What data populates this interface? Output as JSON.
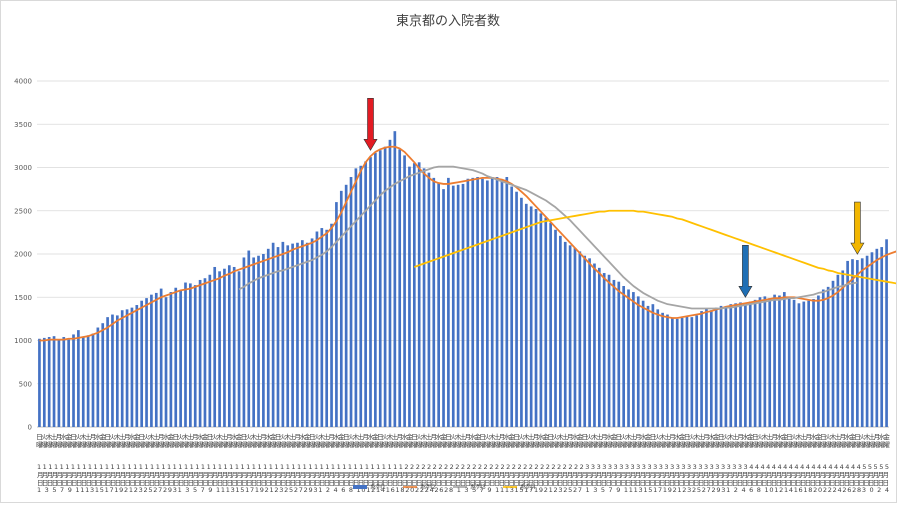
{
  "chart_data": {
    "type": "bar",
    "title": "東京都の入院者数",
    "ylim": [
      0,
      4000
    ],
    "yticks": [
      0,
      500,
      1000,
      1500,
      2000,
      2500,
      3000,
      3500,
      4000
    ],
    "grid": true,
    "legend_placement": "bottom",
    "series": [
      {
        "name": "系列1",
        "type": "bar",
        "color": "#4472c4",
        "values": [
          1020,
          1030,
          1040,
          1050,
          1000,
          1040,
          1010,
          1070,
          1120,
          1040,
          1060,
          1080,
          1150,
          1200,
          1270,
          1300,
          1290,
          1350,
          1360,
          1380,
          1410,
          1460,
          1490,
          1530,
          1550,
          1600,
          1500,
          1560,
          1610,
          1580,
          1670,
          1660,
          1640,
          1700,
          1720,
          1760,
          1850,
          1800,
          1830,
          1870,
          1850,
          1800,
          1960,
          2040,
          1960,
          1980,
          2000,
          2060,
          2130,
          2080,
          2140,
          2100,
          2120,
          2130,
          2160,
          2130,
          2180,
          2260,
          2300,
          2280,
          2350,
          2600,
          2730,
          2800,
          2890,
          2990,
          3020,
          3070,
          3120,
          3170,
          3200,
          3240,
          3320,
          3420,
          3210,
          3140,
          3010,
          3050,
          3060,
          2990,
          2940,
          2880,
          2820,
          2750,
          2880,
          2790,
          2800,
          2810,
          2870,
          2880,
          2890,
          2870,
          2850,
          2890,
          2890,
          2850,
          2890,
          2780,
          2720,
          2650,
          2580,
          2550,
          2520,
          2470,
          2420,
          2360,
          2280,
          2210,
          2140,
          2100,
          2070,
          2030,
          1980,
          1950,
          1890,
          1840,
          1780,
          1760,
          1700,
          1680,
          1630,
          1590,
          1560,
          1510,
          1460,
          1400,
          1420,
          1360,
          1320,
          1300,
          1260,
          1250,
          1260,
          1280,
          1270,
          1290,
          1340,
          1370,
          1350,
          1380,
          1400,
          1390,
          1420,
          1430,
          1440,
          1410,
          1450,
          1470,
          1500,
          1510,
          1490,
          1530,
          1520,
          1560,
          1500,
          1470,
          1430,
          1450,
          1460,
          1480,
          1520,
          1590,
          1620,
          1690,
          1760,
          1810,
          1920,
          1940,
          1930,
          1950,
          1980,
          2020,
          2060,
          2080,
          2170
        ]
      },
      {
        "name": "系列2",
        "type": "line",
        "color": "#ed7d31",
        "values": [
          1000,
          1000,
          1010,
          1010,
          1010,
          1010,
          1020,
          1020,
          1030,
          1040,
          1050,
          1070,
          1090,
          1120,
          1150,
          1190,
          1230,
          1260,
          1290,
          1320,
          1350,
          1380,
          1410,
          1440,
          1470,
          1500,
          1520,
          1540,
          1560,
          1580,
          1590,
          1600,
          1620,
          1640,
          1660,
          1680,
          1700,
          1720,
          1750,
          1770,
          1800,
          1820,
          1840,
          1860,
          1880,
          1900,
          1920,
          1940,
          1960,
          1980,
          2000,
          2020,
          2050,
          2070,
          2090,
          2110,
          2130,
          2160,
          2200,
          2240,
          2300,
          2380,
          2480,
          2600,
          2720,
          2840,
          2960,
          3060,
          3130,
          3180,
          3210,
          3230,
          3240,
          3240,
          3220,
          3180,
          3120,
          3060,
          2990,
          2930,
          2880,
          2840,
          2820,
          2810,
          2810,
          2820,
          2830,
          2840,
          2850,
          2860,
          2870,
          2880,
          2880,
          2880,
          2870,
          2860,
          2840,
          2810,
          2770,
          2720,
          2670,
          2610,
          2550,
          2490,
          2430,
          2370,
          2310,
          2250,
          2190,
          2130,
          2070,
          2010,
          1950,
          1890,
          1830,
          1780,
          1720,
          1670,
          1620,
          1570,
          1530,
          1490,
          1450,
          1410,
          1380,
          1350,
          1320,
          1300,
          1280,
          1270,
          1260,
          1260,
          1270,
          1280,
          1290,
          1300,
          1310,
          1330,
          1340,
          1360,
          1370,
          1390,
          1400,
          1410,
          1420,
          1430,
          1440,
          1450,
          1460,
          1470,
          1480,
          1490,
          1490,
          1500,
          1500,
          1500,
          1490,
          1480,
          1470,
          1460,
          1460,
          1470,
          1490,
          1520,
          1560,
          1610,
          1660,
          1710,
          1760,
          1810,
          1850,
          1890,
          1930,
          1960,
          1990,
          2010,
          2030
        ]
      },
      {
        "name": "系列3",
        "type": "line",
        "color": "#a5a5a5",
        "values": [
          null,
          null,
          null,
          null,
          null,
          null,
          null,
          null,
          null,
          null,
          null,
          null,
          null,
          null,
          null,
          null,
          null,
          null,
          null,
          null,
          null,
          null,
          null,
          null,
          null,
          null,
          null,
          null,
          null,
          null,
          null,
          null,
          null,
          null,
          null,
          null,
          null,
          null,
          null,
          null,
          null,
          1590,
          1620,
          1660,
          1690,
          1720,
          1740,
          1760,
          1780,
          1800,
          1810,
          1830,
          1850,
          1870,
          1890,
          1910,
          1930,
          1960,
          1990,
          2030,
          2080,
          2140,
          2200,
          2260,
          2320,
          2380,
          2440,
          2500,
          2560,
          2620,
          2680,
          2730,
          2770,
          2810,
          2840,
          2870,
          2900,
          2920,
          2940,
          2960,
          2980,
          3000,
          3010,
          3010,
          3010,
          3010,
          3000,
          2990,
          2980,
          2970,
          2950,
          2930,
          2900,
          2880,
          2860,
          2840,
          2820,
          2800,
          2780,
          2760,
          2740,
          2710,
          2680,
          2650,
          2620,
          2580,
          2540,
          2490,
          2440,
          2390,
          2330,
          2270,
          2210,
          2150,
          2090,
          2030,
          1970,
          1910,
          1850,
          1790,
          1730,
          1680,
          1630,
          1590,
          1550,
          1520,
          1490,
          1460,
          1440,
          1420,
          1410,
          1400,
          1390,
          1380,
          1370,
          1370,
          1370,
          1370,
          1370,
          1370,
          1370,
          1380,
          1380,
          1390,
          1400,
          1410,
          1420,
          1430,
          1440,
          1450,
          1460,
          1470,
          1470,
          1480,
          1490,
          1490,
          1500,
          1510,
          1520,
          1530,
          1550,
          1560,
          1580,
          1600,
          1620,
          1630,
          1650,
          1660,
          1670
        ]
      },
      {
        "name": "系列4",
        "type": "line",
        "color": "#ffc000",
        "values": [
          null,
          null,
          null,
          null,
          null,
          null,
          null,
          null,
          null,
          null,
          null,
          null,
          null,
          null,
          null,
          null,
          null,
          null,
          null,
          null,
          null,
          null,
          null,
          null,
          null,
          null,
          null,
          null,
          null,
          null,
          null,
          null,
          null,
          null,
          null,
          null,
          null,
          null,
          null,
          null,
          null,
          null,
          null,
          null,
          null,
          null,
          null,
          null,
          null,
          null,
          null,
          null,
          null,
          null,
          null,
          null,
          null,
          null,
          null,
          null,
          null,
          null,
          null,
          null,
          null,
          null,
          null,
          null,
          null,
          null,
          null,
          null,
          null,
          null,
          null,
          null,
          null,
          1850,
          1870,
          1890,
          1910,
          1930,
          1950,
          1970,
          1990,
          2010,
          2030,
          2050,
          2070,
          2090,
          2110,
          2130,
          2150,
          2170,
          2190,
          2210,
          2230,
          2250,
          2270,
          2290,
          2310,
          2330,
          2350,
          2370,
          2380,
          2390,
          2400,
          2410,
          2420,
          2430,
          2440,
          2450,
          2460,
          2470,
          2480,
          2490,
          2490,
          2500,
          2500,
          2500,
          2500,
          2500,
          2500,
          2490,
          2490,
          2480,
          2470,
          2460,
          2450,
          2440,
          2430,
          2410,
          2400,
          2380,
          2360,
          2340,
          2320,
          2300,
          2280,
          2260,
          2240,
          2220,
          2200,
          2180,
          2160,
          2140,
          2120,
          2100,
          2080,
          2060,
          2040,
          2020,
          2000,
          1980,
          1960,
          1940,
          1920,
          1900,
          1880,
          1860,
          1840,
          1830,
          1810,
          1800,
          1780,
          1770,
          1760,
          1750,
          1740,
          1730,
          1720,
          1710,
          1700,
          1690,
          1680,
          1670,
          1660,
          1650
        ]
      }
    ],
    "x_weekday_row": [
      "日",
      "火",
      "木",
      "土",
      "月",
      "水",
      "金"
    ],
    "x_month_row": "1111111111111111111111111111111111111111111111111111111111111111122222222222222222222222222222222333333333333333333333333333334444444444444444444455555",
    "x_day_row": "1 3 5 7 9 1113151719212325272931 3 5 7 9 1113151719212325272931 2 4 6 8 10121416182022242628 1 3 5 7 9 111315171921232527 1 3 5 7 9 1113151719212325272931 2 4 6 8 101214161820222426283 0 2 4",
    "arrows": [
      {
        "color": "#e31b23",
        "at_index": 68
      },
      {
        "color": "#1f6fb5",
        "at_index": 145
      },
      {
        "color": "#f2b600",
        "at_index": 168
      },
      {
        "color": "#e31b23",
        "at_index": 181
      }
    ]
  }
}
